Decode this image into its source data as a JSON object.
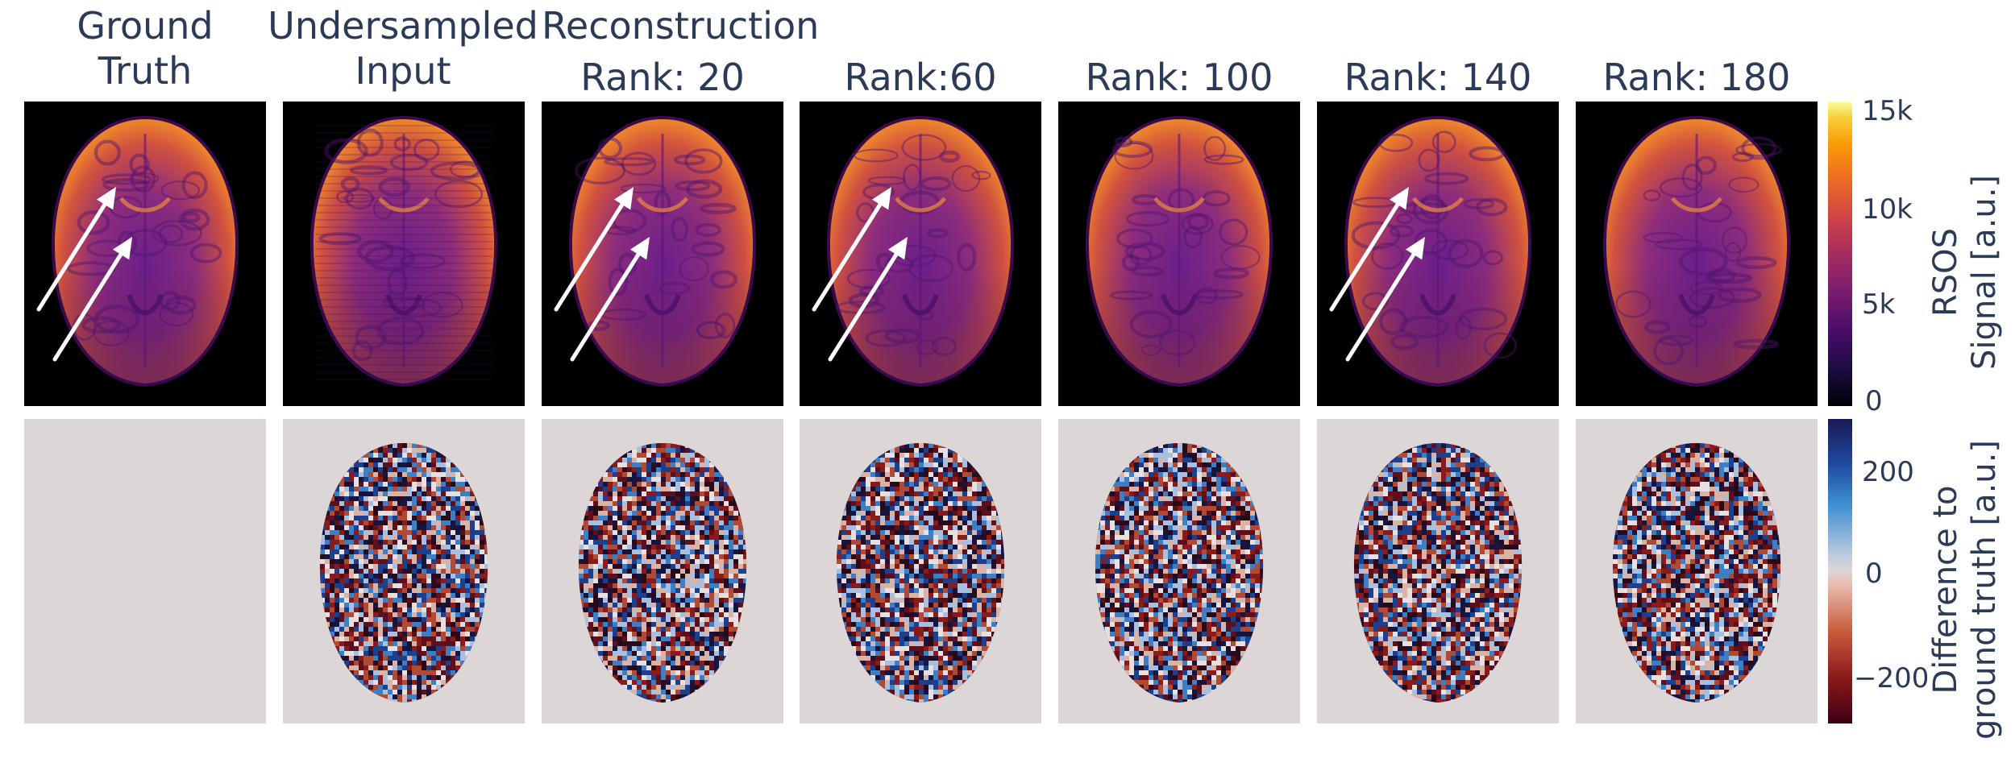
{
  "columns": [
    {
      "id": "gt",
      "title": "Ground\nTruth",
      "arrows": true,
      "diff": false
    },
    {
      "id": "us",
      "title": "Undersampled\nInput",
      "arrows": false,
      "diff": true
    },
    {
      "id": "r20",
      "title": "Rank: 20",
      "arrows": true,
      "diff": true
    },
    {
      "id": "r60",
      "title": "Rank:60",
      "arrows": true,
      "diff": true
    },
    {
      "id": "r100",
      "title": "Rank: 100",
      "arrows": false,
      "diff": true
    },
    {
      "id": "r140",
      "title": "Rank: 140",
      "arrows": true,
      "diff": true
    },
    {
      "id": "r180",
      "title": "Rank: 180",
      "arrows": false,
      "diff": true
    }
  ],
  "group_header": "Reconstruction",
  "colorbar_signal": {
    "label": "RSOS\nSignal [a.u.]",
    "ticks": [
      "15k",
      "10k",
      "5k",
      "0"
    ],
    "colormap": "inferno"
  },
  "colorbar_diff": {
    "label": "Difference to\nground truth [a.u.]",
    "ticks": [
      "200",
      "0",
      "−200"
    ],
    "colormap": "diverging"
  },
  "colors": {
    "text": "#2b3a57",
    "panel_bg_top": "#000000",
    "panel_bg_bottom": "#ddd6d6",
    "arrow": "#ffffff"
  }
}
